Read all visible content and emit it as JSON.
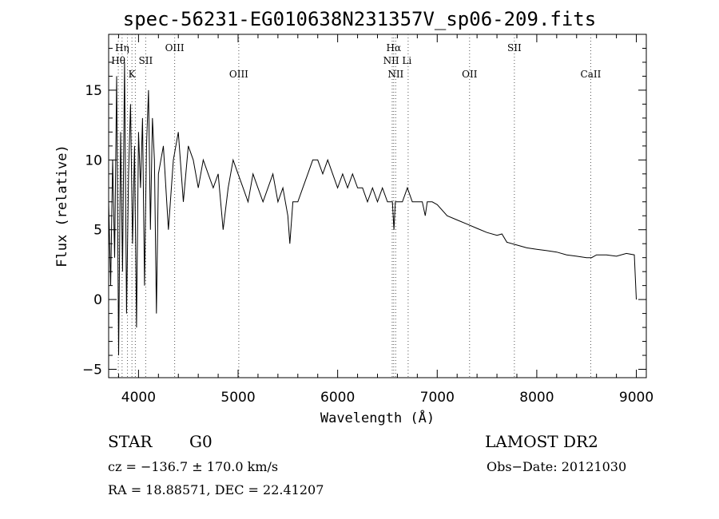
{
  "chart_data": {
    "type": "line",
    "title": "spec-56231-EG010638N231357V_sp06-209.fits",
    "xlabel": "Wavelength (Å)",
    "ylabel": "Flux (relative)",
    "xlim": [
      3700,
      9100
    ],
    "ylim": [
      -5.6,
      19
    ],
    "xticks": [
      4000,
      5000,
      6000,
      7000,
      8000,
      9000
    ],
    "xtick_labels": [
      "4000",
      "5000",
      "6000",
      "7000",
      "8000",
      "9000"
    ],
    "yticks": [
      -5,
      0,
      5,
      10,
      15
    ],
    "ytick_labels": [
      "−5",
      "0",
      "5",
      "10",
      "15"
    ],
    "grid": false,
    "series": [
      {
        "name": "spectrum",
        "x": [
          3700,
          3720,
          3740,
          3760,
          3780,
          3800,
          3820,
          3840,
          3860,
          3880,
          3900,
          3920,
          3940,
          3960,
          3980,
          4000,
          4020,
          4040,
          4060,
          4080,
          4100,
          4120,
          4140,
          4160,
          4180,
          4200,
          4250,
          4300,
          4350,
          4400,
          4450,
          4500,
          4550,
          4600,
          4650,
          4700,
          4750,
          4800,
          4850,
          4900,
          4950,
          5000,
          5050,
          5100,
          5150,
          5200,
          5250,
          5300,
          5350,
          5400,
          5450,
          5500,
          5520,
          5550,
          5600,
          5650,
          5700,
          5750,
          5800,
          5850,
          5900,
          5950,
          6000,
          6050,
          6100,
          6150,
          6200,
          6250,
          6300,
          6350,
          6400,
          6450,
          6500,
          6550,
          6565,
          6580,
          6600,
          6650,
          6700,
          6750,
          6800,
          6850,
          6880,
          6900,
          6950,
          7000,
          7100,
          7200,
          7300,
          7400,
          7500,
          7600,
          7650,
          7700,
          7800,
          7900,
          8000,
          8100,
          8200,
          8300,
          8400,
          8500,
          8550,
          8600,
          8700,
          8800,
          8900,
          8980,
          9000
        ],
        "y": [
          7,
          1,
          10,
          3,
          16,
          -4,
          12,
          2,
          17,
          -1,
          9,
          14,
          4,
          11,
          -2,
          12,
          8,
          13,
          1,
          11,
          15,
          5,
          13,
          10,
          -1,
          9,
          11,
          5,
          10,
          12,
          7,
          11,
          10,
          8,
          10,
          9,
          8,
          9,
          5,
          8,
          10,
          9,
          8,
          7,
          9,
          8,
          7,
          8,
          9,
          7,
          8,
          6,
          4,
          7,
          7,
          8,
          9,
          10,
          10,
          9,
          10,
          9,
          8,
          9,
          8,
          9,
          8,
          8,
          7,
          8,
          7,
          8,
          7,
          7,
          5,
          7,
          7,
          7,
          8,
          7,
          7,
          7,
          6,
          7,
          7,
          6.8,
          6,
          5.7,
          5.4,
          5.1,
          4.8,
          4.6,
          4.7,
          4.1,
          3.9,
          3.7,
          3.6,
          3.5,
          3.4,
          3.2,
          3.1,
          3.0,
          3.0,
          3.2,
          3.2,
          3.1,
          3.3,
          3.2,
          0
        ]
      }
    ],
    "lines": [
      {
        "name": "Hη",
        "wavelength": 3835,
        "row": 1
      },
      {
        "name": "Hθ",
        "wavelength": 3797,
        "row": 2
      },
      {
        "name": "SII",
        "wavelength": 4072,
        "row": 2
      },
      {
        "name": "K",
        "wavelength": 3934,
        "row": 3
      },
      {
        "name": "OIII",
        "wavelength": 4363,
        "row": 1
      },
      {
        "name": "OIII",
        "wavelength": 5007,
        "row": 3
      },
      {
        "name": "Hα",
        "wavelength": 6563,
        "row": 1
      },
      {
        "name": "NII Li",
        "wavelength": 6600,
        "row": 2
      },
      {
        "name": "NII",
        "wavelength": 6583,
        "row": 3
      },
      {
        "name": "OII",
        "wavelength": 7325,
        "row": 3
      },
      {
        "name": "SII",
        "wavelength": 7775,
        "row": 1
      },
      {
        "name": "CaII",
        "wavelength": 8542,
        "row": 3
      }
    ],
    "dotted_lines": [
      3797,
      3835,
      3889,
      3934,
      3968,
      4072,
      4363,
      5007,
      6548,
      6563,
      6583,
      6708,
      7325,
      7775,
      8542
    ]
  },
  "footer": {
    "class_label": "STAR",
    "subclass": "G0",
    "survey": "LAMOST DR2",
    "cz": "cz = −136.7 ± 170.0 km/s",
    "obs_date": "Obs−Date: 20121030",
    "coords": "RA =  18.88571, DEC =  22.41207"
  }
}
